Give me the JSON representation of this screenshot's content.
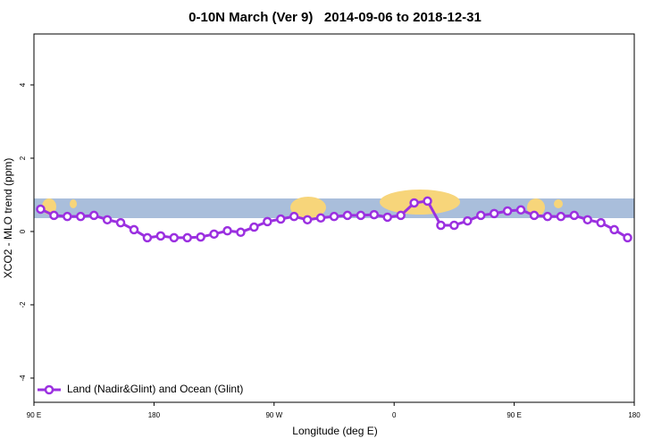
{
  "chart_data": {
    "type": "line",
    "title": "0-10N March (Ver 9)   2014-09-06 to 2018-12-31",
    "x_label": "Longitude (deg E)",
    "y_label": "XCO2 - MLO trend (ppm)",
    "series": [
      {
        "name": "Land (Nadir&Glint) and Ocean (Glint)",
        "color": "#9b30e0",
        "values": [
          0.61,
          0.44,
          0.41,
          0.41,
          0.44,
          0.32,
          0.24,
          0.05,
          -0.17,
          -0.12,
          -0.17,
          -0.17,
          -0.15,
          -0.07,
          0.02,
          -0.02,
          0.12,
          0.27,
          0.34,
          0.41,
          0.32,
          0.37,
          0.41,
          0.44,
          0.44,
          0.46,
          0.39,
          0.44,
          0.78,
          0.83,
          0.17,
          0.17,
          0.29,
          0.44,
          0.49,
          0.56,
          0.59,
          0.44,
          0.41,
          0.41,
          0.44,
          0.32,
          0.24,
          0.05,
          -0.17
        ]
      }
    ],
    "x": [
      95,
      105,
      115,
      125,
      135,
      145,
      155,
      165,
      175,
      185,
      195,
      205,
      215,
      225,
      235,
      245,
      255,
      265,
      275,
      285,
      295,
      305,
      315,
      325,
      335,
      345,
      355,
      365,
      375,
      385,
      395,
      405,
      415,
      425,
      435,
      445,
      455,
      465,
      475,
      485,
      495,
      505,
      515,
      525,
      535
    ],
    "xlim": [
      90,
      540
    ],
    "xticks": [
      {
        "value": 90,
        "label": "90 E"
      },
      {
        "value": 180,
        "label": "180"
      },
      {
        "value": 270,
        "label": "90 W"
      },
      {
        "value": 360,
        "label": "0"
      },
      {
        "value": 450,
        "label": "90 E"
      },
      {
        "value": 540,
        "label": "180"
      }
    ],
    "ylim": [
      -4.66,
      5.39
    ],
    "yticks": [
      -4,
      -2,
      0,
      2,
      4
    ],
    "legend": "bottom-left"
  }
}
